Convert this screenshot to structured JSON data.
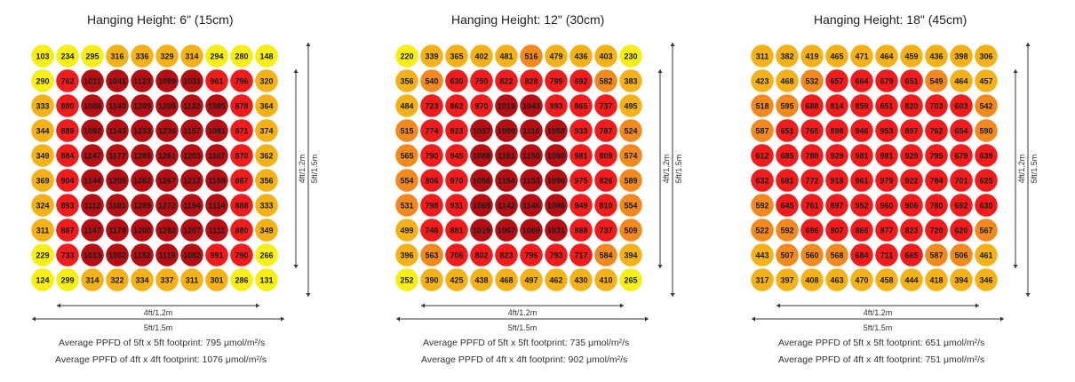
{
  "colors": {
    "yellow": "#f7ee18",
    "amber": "#f3b21a",
    "orange": "#f08a1f",
    "red": "#ee1c1c",
    "darkred": "#b40f14"
  },
  "dimension_labels": {
    "inner_horizontal": "4ft/1.2m",
    "outer_horizontal": "5ft/1.5m",
    "inner_vertical": "4ft/1.2m",
    "outer_vertical": "5ft/1.5m"
  },
  "panels": [
    {
      "title": "Hanging Height: 6\" (15cm)",
      "avg_5ft": "Average PPFD of 5ft x 5ft footprint: 795 μmol/m²/s",
      "avg_4ft": "Average PPFD of 4ft x 4ft footprint: 1076 μmol/m²/s"
    },
    {
      "title": "Hanging Height: 12\" (30cm)",
      "avg_5ft": "Average PPFD of 5ft x 5ft footprint: 735 μmol/m²/s",
      "avg_4ft": "Average PPFD of 4ft x 4ft footprint: 902 μmol/m²/s"
    },
    {
      "title": "Hanging Height: 18\" (45cm)",
      "avg_5ft": "Average PPFD of 5ft x 5ft footprint: 651 μmol/m²/s",
      "avg_4ft": "Average PPFD of 4ft x 4ft footprint: 751 μmol/m²/s"
    }
  ],
  "chart_data": [
    {
      "type": "heatmap",
      "title": "Hanging Height: 6\" (15cm)",
      "unit": "μmol/m²/s",
      "values": [
        [
          103,
          234,
          295,
          316,
          336,
          329,
          314,
          294,
          280,
          148
        ],
        [
          290,
          762,
          1011,
          1041,
          1123,
          1099,
          1031,
          961,
          796,
          320
        ],
        [
          333,
          880,
          1086,
          1140,
          1209,
          1205,
          1132,
          1085,
          878,
          364
        ],
        [
          344,
          889,
          1092,
          1143,
          1233,
          1230,
          1157,
          1081,
          871,
          374
        ],
        [
          349,
          884,
          1147,
          1177,
          1285,
          1261,
          1203,
          1107,
          870,
          362
        ],
        [
          369,
          904,
          1144,
          1205,
          1282,
          1267,
          1212,
          1159,
          887,
          356
        ],
        [
          324,
          893,
          1112,
          1181,
          1289,
          1272,
          1194,
          1114,
          888,
          333
        ],
        [
          311,
          887,
          1147,
          1179,
          1200,
          1282,
          1207,
          1111,
          880,
          349
        ],
        [
          229,
          733,
          1013,
          1052,
          1152,
          1119,
          1082,
          991,
          790,
          266
        ],
        [
          124,
          299,
          314,
          322,
          334,
          337,
          311,
          301,
          286,
          131
        ]
      ]
    },
    {
      "type": "heatmap",
      "title": "Hanging Height: 12\" (30cm)",
      "unit": "μmol/m²/s",
      "values": [
        [
          220,
          339,
          365,
          402,
          481,
          516,
          479,
          436,
          403,
          230
        ],
        [
          356,
          540,
          630,
          750,
          822,
          828,
          799,
          692,
          582,
          383
        ],
        [
          484,
          723,
          862,
          970,
          1019,
          1043,
          993,
          865,
          737,
          495
        ],
        [
          515,
          774,
          923,
          1037,
          1099,
          1110,
          1058,
          933,
          787,
          524
        ],
        [
          565,
          790,
          945,
          1088,
          1151,
          1150,
          1090,
          981,
          809,
          574
        ],
        [
          554,
          806,
          970,
          1056,
          1154,
          1153,
          1096,
          975,
          826,
          589
        ],
        [
          531,
          798,
          931,
          1069,
          1142,
          1146,
          1086,
          949,
          810,
          554
        ],
        [
          499,
          746,
          881,
          1019,
          1067,
          1069,
          1031,
          888,
          737,
          509
        ],
        [
          396,
          563,
          706,
          802,
          823,
          796,
          793,
          717,
          584,
          394
        ],
        [
          252,
          390,
          425,
          438,
          468,
          497,
          462,
          430,
          410,
          265
        ]
      ]
    },
    {
      "type": "heatmap",
      "title": "Hanging Height: 18\" (45cm)",
      "unit": "μmol/m²/s",
      "values": [
        [
          311,
          382,
          419,
          465,
          471,
          464,
          459,
          436,
          398,
          306
        ],
        [
          423,
          468,
          532,
          657,
          664,
          679,
          651,
          549,
          464,
          457
        ],
        [
          518,
          595,
          688,
          814,
          859,
          851,
          820,
          703,
          603,
          542
        ],
        [
          587,
          651,
          765,
          898,
          946,
          953,
          897,
          762,
          654,
          590
        ],
        [
          612,
          685,
          788,
          929,
          981,
          981,
          929,
          795,
          679,
          639
        ],
        [
          632,
          681,
          772,
          918,
          961,
          979,
          922,
          784,
          701,
          625
        ],
        [
          592,
          645,
          761,
          897,
          952,
          960,
          906,
          780,
          692,
          630
        ],
        [
          522,
          592,
          696,
          807,
          866,
          877,
          823,
          720,
          620,
          567
        ],
        [
          443,
          507,
          560,
          568,
          684,
          711,
          665,
          587,
          506,
          461
        ],
        [
          317,
          397,
          408,
          463,
          470,
          458,
          444,
          418,
          394,
          346
        ]
      ]
    }
  ]
}
